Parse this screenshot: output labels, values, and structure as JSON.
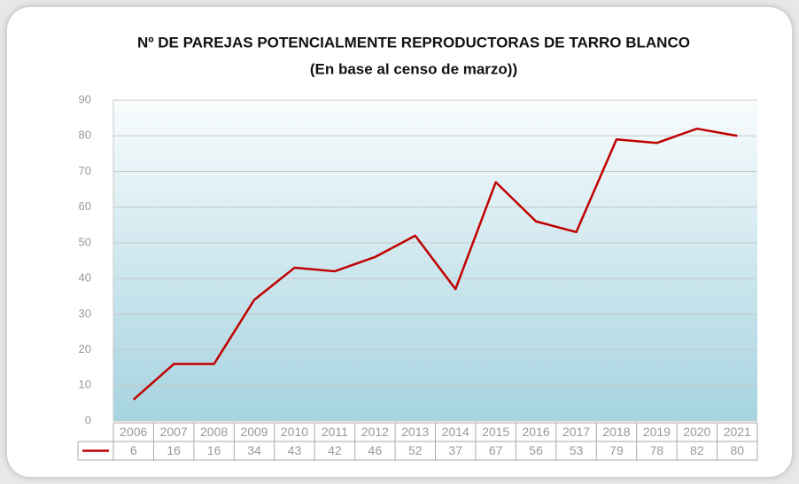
{
  "chart_data": {
    "type": "line",
    "title": "Nº DE PAREJAS POTENCIALMENTE REPRODUCTORAS DE TARRO BLANCO",
    "subtitle": "(En base al censo de marzo))",
    "categories": [
      "2006",
      "2007",
      "2008",
      "2009",
      "2010",
      "2011",
      "2012",
      "2013",
      "2014",
      "2015",
      "2016",
      "2017",
      "2018",
      "2019",
      "2020",
      "2021"
    ],
    "values": [
      6,
      16,
      16,
      34,
      43,
      42,
      46,
      52,
      37,
      67,
      56,
      53,
      79,
      78,
      82,
      80
    ],
    "color": "#c00000",
    "ylim": [
      0,
      90
    ],
    "yticks": [
      0,
      10,
      20,
      30,
      40,
      50,
      60,
      70,
      80,
      90
    ],
    "grid": true
  }
}
